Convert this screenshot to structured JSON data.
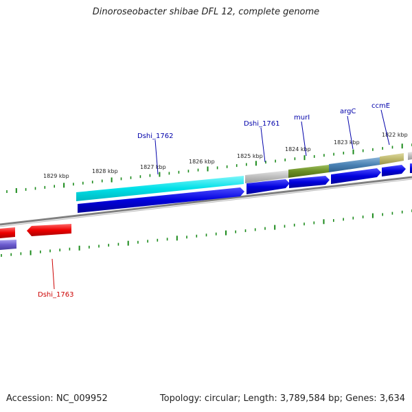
{
  "title": "Dinoroseobacter shibae DFL 12, complete genome",
  "footer": {
    "accession": "Accession: NC_009952",
    "summary": "Topology: circular; Length: 3,789,584 bp; Genes: 3,634"
  },
  "scale_labels": [
    "1829 kbp",
    "1828 kbp",
    "1827 kbp",
    "1826 kbp",
    "1825 kbp",
    "1824 kbp",
    "1823 kbp",
    "1822 kbp"
  ],
  "gene_labels": [
    {
      "text": "Dshi_1762",
      "color": "#0000aa"
    },
    {
      "text": "Dshi_1761",
      "color": "#0000aa"
    },
    {
      "text": "murI",
      "color": "#0000aa"
    },
    {
      "text": "argC",
      "color": "#0000aa"
    },
    {
      "text": "ccmE",
      "color": "#0000aa"
    },
    {
      "text": "Dshi_1763",
      "color": "#cc0000"
    }
  ],
  "colors": {
    "cyan_feature": "#00e0e8",
    "grey_feature": "#bdbdbd",
    "olive_feature": "#6b8e23",
    "steel_feature": "#4a82b4",
    "khaki_feature": "#bdb76b",
    "forward_cds": "#0000dd",
    "reverse_cds": "#ee0000",
    "reverse_other": "#6a5acd",
    "backbone": "#808080",
    "tick": "#1a8a1a"
  }
}
